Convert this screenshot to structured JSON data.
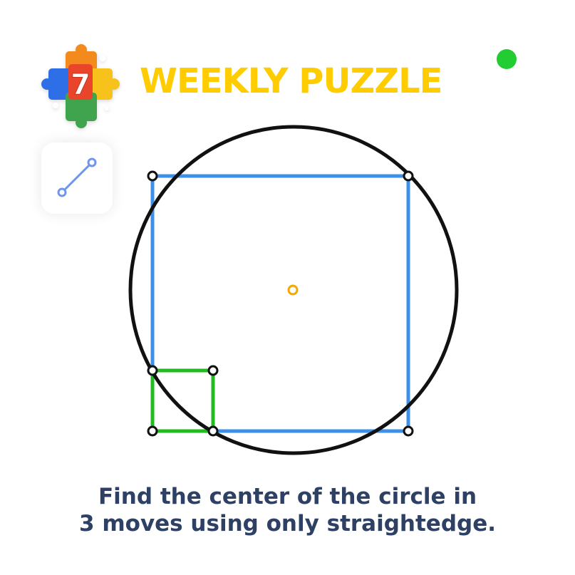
{
  "header": {
    "logo_number": "7",
    "title": "WEEKLY PUZZLE",
    "status_indicator": "online-dot"
  },
  "toolbar": {
    "tools": [
      {
        "name": "straightedge-tool",
        "icon": "line-segment-icon",
        "selected": true
      }
    ]
  },
  "puzzle": {
    "shapes": [
      "circle",
      "large-square",
      "small-square",
      "center-point"
    ],
    "moves_allowed": 3
  },
  "instructions": {
    "line1": "Find the center of the circle in",
    "line2": "3 moves using only straightedge."
  },
  "colors": {
    "title": "#FFCC00",
    "status_dot": "#22CC33",
    "circle": "#111111",
    "large_square": "#3D8FE8",
    "small_square": "#22BB22",
    "center_point": "#F2A900",
    "tool_icon": "#6F96EE",
    "instructions_text": "#2E4165",
    "logo_red": "#E8452C",
    "logo_blue": "#2F6EE6",
    "logo_yellow": "#F7C21A",
    "logo_green": "#3FA34D",
    "logo_orange": "#F28A1E"
  }
}
